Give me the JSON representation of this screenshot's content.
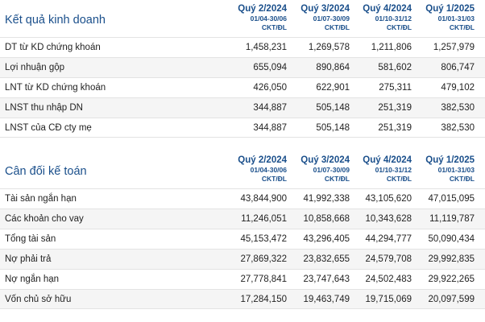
{
  "kqkd": {
    "title": "Kết quả kinh doanh",
    "columns": [
      {
        "quarter": "Quý 2/2024",
        "dates": "01/04-30/06",
        "unit": "CKT/ĐL"
      },
      {
        "quarter": "Quý 3/2024",
        "dates": "01/07-30/09",
        "unit": "CKT/ĐL"
      },
      {
        "quarter": "Quý 4/2024",
        "dates": "01/10-31/12",
        "unit": "CKT/ĐL"
      },
      {
        "quarter": "Quý 1/2025",
        "dates": "01/01-31/03",
        "unit": "CKT/ĐL"
      }
    ],
    "rows": [
      {
        "label": "DT từ KD chứng khoán",
        "values": [
          "1,458,231",
          "1,269,578",
          "1,211,806",
          "1,257,979"
        ]
      },
      {
        "label": "Lợi nhuận gộp",
        "values": [
          "655,094",
          "890,864",
          "581,602",
          "806,747"
        ]
      },
      {
        "label": "LNT từ KD chứng khoán",
        "values": [
          "426,050",
          "622,901",
          "275,311",
          "479,102"
        ]
      },
      {
        "label": "LNST thu nhập DN",
        "values": [
          "344,887",
          "505,148",
          "251,319",
          "382,530"
        ]
      },
      {
        "label": "LNST của CĐ cty mẹ",
        "values": [
          "344,887",
          "505,148",
          "251,319",
          "382,530"
        ]
      }
    ]
  },
  "cdkt": {
    "title": "Cân đối kế toán",
    "columns": [
      {
        "quarter": "Quý 2/2024",
        "dates": "01/04-30/06",
        "unit": "CKT/ĐL"
      },
      {
        "quarter": "Quý 3/2024",
        "dates": "01/07-30/09",
        "unit": "CKT/ĐL"
      },
      {
        "quarter": "Quý 4/2024",
        "dates": "01/10-31/12",
        "unit": "CKT/ĐL"
      },
      {
        "quarter": "Quý 1/2025",
        "dates": "01/01-31/03",
        "unit": "CKT/ĐL"
      }
    ],
    "rows": [
      {
        "label": "Tài sản ngắn hạn",
        "values": [
          "43,844,900",
          "41,992,338",
          "43,105,620",
          "47,015,095"
        ]
      },
      {
        "label": "Các khoản cho vay",
        "values": [
          "11,246,051",
          "10,858,668",
          "10,343,628",
          "11,119,787"
        ]
      },
      {
        "label": "Tổng tài sản",
        "values": [
          "45,153,472",
          "43,296,405",
          "44,294,777",
          "50,090,434"
        ]
      },
      {
        "label": "Nợ phải trả",
        "values": [
          "27,869,322",
          "23,832,655",
          "24,579,708",
          "29,992,835"
        ]
      },
      {
        "label": "Nợ ngắn hạn",
        "values": [
          "27,778,841",
          "23,747,643",
          "24,502,483",
          "29,922,265"
        ]
      },
      {
        "label": "Vốn chủ sở hữu",
        "values": [
          "17,284,150",
          "19,463,749",
          "19,715,069",
          "20,097,599"
        ]
      }
    ]
  }
}
